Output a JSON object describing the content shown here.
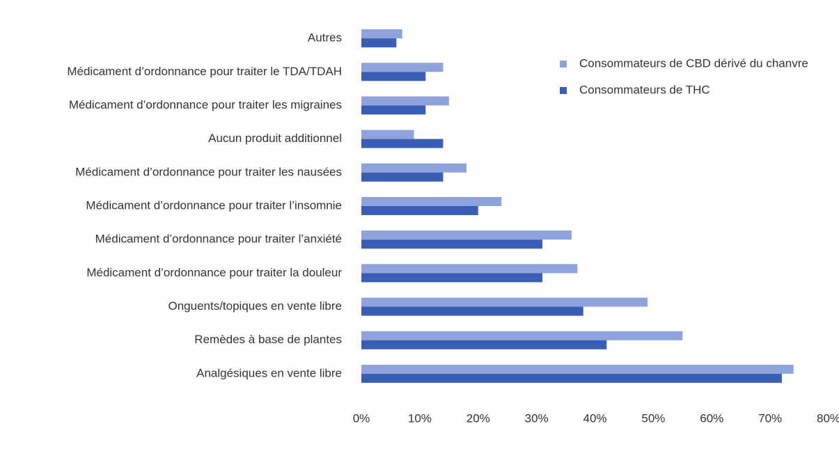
{
  "chart_data": {
    "type": "barh",
    "categories": [
      "Autres",
      "Médicament d’ordonnance pour traiter le TDA/TDAH",
      "Médicament d’ordonnance pour traiter les migraines",
      "Aucun produit additionnel",
      "Médicament d’ordonnance pour traiter les nausées",
      "Médicament d’ordonnance pour traiter l’insomnie",
      "Médicament d’ordonnance pour traiter l’anxiété",
      "Médicament d’ordonnance pour traiter la douleur",
      "Onguents/topiques en vente libre",
      "Remèdes à base de plantes",
      "Analgésiques en vente libre"
    ],
    "series": [
      {
        "name": "Consommateurs de CBD dérivé du chanvre",
        "color": "#8ea2dc",
        "values": [
          7,
          14,
          15,
          9,
          18,
          24,
          36,
          37,
          49,
          55,
          74
        ]
      },
      {
        "name": "Consommateurs de THC",
        "color": "#3a5db5",
        "values": [
          6,
          11,
          11,
          14,
          14,
          20,
          31,
          31,
          38,
          42,
          72
        ]
      }
    ],
    "xlim": [
      0,
      80
    ],
    "xticks": [
      {
        "value": 0,
        "label": "0%"
      },
      {
        "value": 10,
        "label": "10%"
      },
      {
        "value": 20,
        "label": "20%"
      },
      {
        "value": 30,
        "label": "30%"
      },
      {
        "value": 40,
        "label": "40%"
      },
      {
        "value": 50,
        "label": "50%"
      },
      {
        "value": 60,
        "label": "60%"
      },
      {
        "value": 70,
        "label": "70%"
      },
      {
        "value": 80,
        "label": "80%"
      }
    ],
    "grid": false,
    "legend": "top-right"
  }
}
